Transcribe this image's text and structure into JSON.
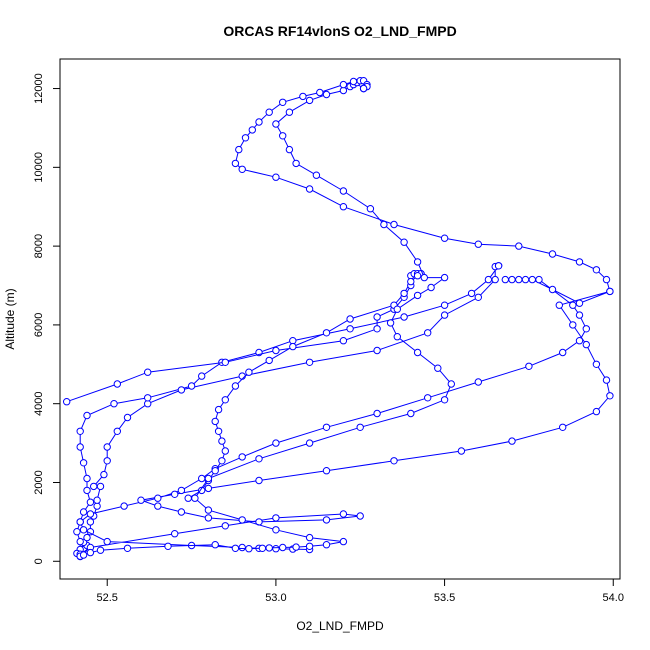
{
  "chart_data": {
    "type": "scatter",
    "title": "ORCAS RF14vlonS O2_LND_FMPD",
    "xlabel": "O2_LND_FMPD",
    "ylabel": "Altitude (m)",
    "xlim": [
      52.36,
      54.02
    ],
    "ylim": [
      -450,
      12750
    ],
    "xticks": [
      52.5,
      53.0,
      53.5,
      54.0
    ],
    "xtick_labels": [
      "52.5",
      "53.0",
      "53.5",
      "54.0"
    ],
    "yticks": [
      0,
      2000,
      4000,
      6000,
      8000,
      10000,
      12000
    ],
    "ytick_labels": [
      "0",
      "2000",
      "4000",
      "6000",
      "8000",
      "10000",
      "12000"
    ],
    "grid": false,
    "legend": "none",
    "colors": {
      "series": "#0000ff",
      "axes": "#000000"
    },
    "series": [
      {
        "values": [
          [
            52.42,
            150
          ],
          [
            52.42,
            200
          ],
          [
            52.43,
            300
          ],
          [
            52.44,
            400
          ],
          [
            52.43,
            480
          ],
          [
            52.44,
            600
          ],
          [
            52.45,
            750
          ],
          [
            52.45,
            1000
          ],
          [
            52.46,
            1150
          ],
          [
            52.47,
            1400
          ],
          [
            52.47,
            1550
          ],
          [
            52.48,
            1900
          ],
          [
            52.46,
            1900
          ],
          [
            52.49,
            2200
          ],
          [
            52.5,
            2550
          ],
          [
            52.5,
            2900
          ],
          [
            52.53,
            3300
          ],
          [
            52.56,
            3650
          ],
          [
            52.62,
            4000
          ],
          [
            52.72,
            4350
          ],
          [
            52.9,
            4700
          ],
          [
            53.1,
            5050
          ],
          [
            53.3,
            5350
          ],
          [
            53.45,
            5800
          ],
          [
            53.5,
            6250
          ],
          [
            53.6,
            6700
          ],
          [
            53.65,
            7150
          ],
          [
            53.65,
            7480
          ],
          [
            53.66,
            7500
          ],
          [
            53.66,
            7500
          ],
          [
            53.63,
            7150
          ],
          [
            53.58,
            6800
          ],
          [
            53.5,
            6500
          ],
          [
            53.38,
            6200
          ],
          [
            53.22,
            5900
          ],
          [
            53.05,
            5600
          ],
          [
            52.95,
            5300
          ],
          [
            52.84,
            5050
          ],
          [
            52.78,
            4700
          ],
          [
            52.75,
            4450
          ],
          [
            52.62,
            4150
          ],
          [
            52.52,
            4000
          ],
          [
            52.44,
            3700
          ],
          [
            52.42,
            3300
          ],
          [
            52.42,
            2900
          ],
          [
            52.43,
            2500
          ],
          [
            52.44,
            2100
          ],
          [
            52.44,
            1800
          ],
          [
            52.45,
            1500
          ],
          [
            52.43,
            1250
          ],
          [
            52.42,
            1000
          ],
          [
            52.41,
            750
          ],
          [
            52.42,
            500
          ],
          [
            52.42,
            300
          ],
          [
            52.41,
            200
          ]
        ]
      },
      {
        "values": [
          [
            52.42,
            120
          ],
          [
            52.42,
            180
          ],
          [
            52.45,
            350
          ],
          [
            52.7,
            700
          ],
          [
            52.85,
            900
          ],
          [
            53.0,
            1100
          ],
          [
            53.2,
            1200
          ],
          [
            53.25,
            1150
          ],
          [
            53.15,
            1050
          ],
          [
            52.95,
            1000
          ],
          [
            52.8,
            1100
          ],
          [
            52.72,
            1250
          ],
          [
            52.65,
            1400
          ],
          [
            52.6,
            1550
          ],
          [
            52.7,
            1700
          ],
          [
            52.8,
            1850
          ],
          [
            52.95,
            2050
          ],
          [
            53.15,
            2300
          ],
          [
            53.35,
            2550
          ],
          [
            53.55,
            2800
          ],
          [
            53.7,
            3050
          ],
          [
            53.85,
            3400
          ],
          [
            53.95,
            3800
          ],
          [
            53.99,
            4200
          ],
          [
            53.98,
            4600
          ],
          [
            53.95,
            5000
          ],
          [
            53.92,
            5500
          ],
          [
            53.88,
            6000
          ],
          [
            53.84,
            6500
          ],
          [
            53.99,
            6850
          ],
          [
            53.9,
            6550
          ],
          [
            53.82,
            6900
          ],
          [
            53.76,
            7150
          ],
          [
            53.72,
            7150
          ],
          [
            53.7,
            7150
          ],
          [
            53.68,
            7150
          ],
          [
            53.74,
            7150
          ],
          [
            53.78,
            7150
          ],
          [
            53.88,
            6500
          ],
          [
            53.9,
            6250
          ],
          [
            53.92,
            5900
          ],
          [
            53.9,
            5600
          ],
          [
            53.85,
            5300
          ],
          [
            53.75,
            4950
          ],
          [
            53.6,
            4550
          ],
          [
            53.45,
            4150
          ],
          [
            53.3,
            3750
          ],
          [
            53.15,
            3400
          ],
          [
            53.0,
            3000
          ],
          [
            52.9,
            2650
          ],
          [
            52.82,
            2350
          ],
          [
            52.78,
            2100
          ],
          [
            52.72,
            1800
          ],
          [
            52.65,
            1600
          ],
          [
            52.55,
            1400
          ],
          [
            52.45,
            1200
          ],
          [
            52.42,
            1000
          ],
          [
            52.43,
            800
          ],
          [
            52.5,
            500
          ],
          [
            52.75,
            400
          ],
          [
            52.9,
            350
          ],
          [
            52.95,
            330
          ],
          [
            53.0,
            320
          ],
          [
            53.05,
            310
          ],
          [
            53.1,
            300
          ]
        ]
      },
      {
        "values": [
          [
            52.38,
            4050
          ],
          [
            52.53,
            4500
          ],
          [
            52.62,
            4800
          ],
          [
            52.85,
            5050
          ],
          [
            53.0,
            5350
          ],
          [
            53.2,
            5600
          ],
          [
            53.3,
            5900
          ],
          [
            53.3,
            6200
          ],
          [
            53.35,
            6400
          ],
          [
            53.38,
            6700
          ],
          [
            53.4,
            7000
          ],
          [
            53.4,
            7250
          ],
          [
            53.41,
            7300
          ],
          [
            53.42,
            7300
          ],
          [
            53.43,
            7300
          ],
          [
            53.43,
            7300
          ],
          [
            53.42,
            7250
          ],
          [
            53.4,
            7100
          ],
          [
            53.38,
            6800
          ],
          [
            53.35,
            6500
          ],
          [
            53.22,
            6150
          ],
          [
            53.15,
            5800
          ],
          [
            53.05,
            5450
          ],
          [
            52.98,
            5100
          ],
          [
            52.92,
            4800
          ],
          [
            52.88,
            4450
          ],
          [
            52.85,
            4100
          ],
          [
            52.83,
            3850
          ],
          [
            52.82,
            3550
          ],
          [
            52.83,
            3300
          ],
          [
            52.84,
            3050
          ],
          [
            52.85,
            2800
          ],
          [
            52.84,
            2550
          ],
          [
            52.82,
            2300
          ],
          [
            52.8,
            2050
          ],
          [
            52.78,
            1800
          ],
          [
            52.74,
            1600
          ]
        ]
      },
      {
        "values": [
          [
            52.42,
            130
          ],
          [
            52.43,
            160
          ],
          [
            52.45,
            220
          ],
          [
            52.48,
            280
          ],
          [
            52.56,
            330
          ],
          [
            52.68,
            380
          ],
          [
            52.82,
            420
          ],
          [
            52.88,
            330
          ],
          [
            52.92,
            320
          ],
          [
            52.96,
            330
          ],
          [
            52.98,
            340
          ],
          [
            53.02,
            350
          ],
          [
            53.06,
            360
          ],
          [
            53.1,
            380
          ],
          [
            53.15,
            420
          ],
          [
            53.2,
            500
          ],
          [
            53.1,
            600
          ],
          [
            53.0,
            800
          ],
          [
            52.9,
            1050
          ],
          [
            52.8,
            1300
          ],
          [
            52.76,
            1600
          ],
          [
            52.8,
            2100
          ],
          [
            52.95,
            2600
          ],
          [
            53.1,
            3000
          ],
          [
            53.25,
            3400
          ],
          [
            53.4,
            3750
          ],
          [
            53.5,
            4100
          ],
          [
            53.52,
            4500
          ],
          [
            53.48,
            4900
          ],
          [
            53.42,
            5300
          ],
          [
            53.36,
            5700
          ],
          [
            53.34,
            6050
          ],
          [
            53.36,
            6400
          ],
          [
            53.42,
            6750
          ],
          [
            53.46,
            6950
          ],
          [
            53.5,
            7200
          ],
          [
            53.44,
            7200
          ],
          [
            53.42,
            7600
          ],
          [
            53.38,
            8100
          ],
          [
            53.32,
            8550
          ],
          [
            53.28,
            8950
          ],
          [
            53.2,
            9400
          ],
          [
            53.12,
            9800
          ],
          [
            53.06,
            10100
          ],
          [
            53.04,
            10450
          ],
          [
            53.02,
            10800
          ],
          [
            53.0,
            11100
          ],
          [
            53.04,
            11400
          ],
          [
            53.1,
            11700
          ],
          [
            53.15,
            11850
          ],
          [
            53.2,
            11950
          ],
          [
            53.22,
            12050
          ],
          [
            53.23,
            12100
          ],
          [
            53.24,
            12150
          ],
          [
            53.25,
            12200
          ],
          [
            53.26,
            12200
          ],
          [
            53.27,
            12100
          ],
          [
            53.26,
            12000
          ],
          [
            53.27,
            12050
          ],
          [
            53.26,
            12000
          ],
          [
            53.26,
            12000
          ],
          [
            53.23,
            12180
          ],
          [
            53.2,
            12100
          ],
          [
            53.13,
            11900
          ],
          [
            53.08,
            11800
          ],
          [
            53.02,
            11650
          ],
          [
            52.98,
            11400
          ],
          [
            52.95,
            11150
          ],
          [
            52.93,
            10950
          ],
          [
            52.91,
            10750
          ],
          [
            52.89,
            10450
          ],
          [
            52.88,
            10100
          ],
          [
            52.9,
            9950
          ],
          [
            53.0,
            9750
          ],
          [
            53.1,
            9450
          ],
          [
            53.2,
            9000
          ],
          [
            53.35,
            8550
          ],
          [
            53.5,
            8200
          ],
          [
            53.6,
            8050
          ],
          [
            53.72,
            8000
          ],
          [
            53.82,
            7800
          ],
          [
            53.9,
            7600
          ],
          [
            53.95,
            7400
          ],
          [
            53.98,
            7150
          ],
          [
            53.99,
            6850
          ]
        ]
      }
    ]
  }
}
